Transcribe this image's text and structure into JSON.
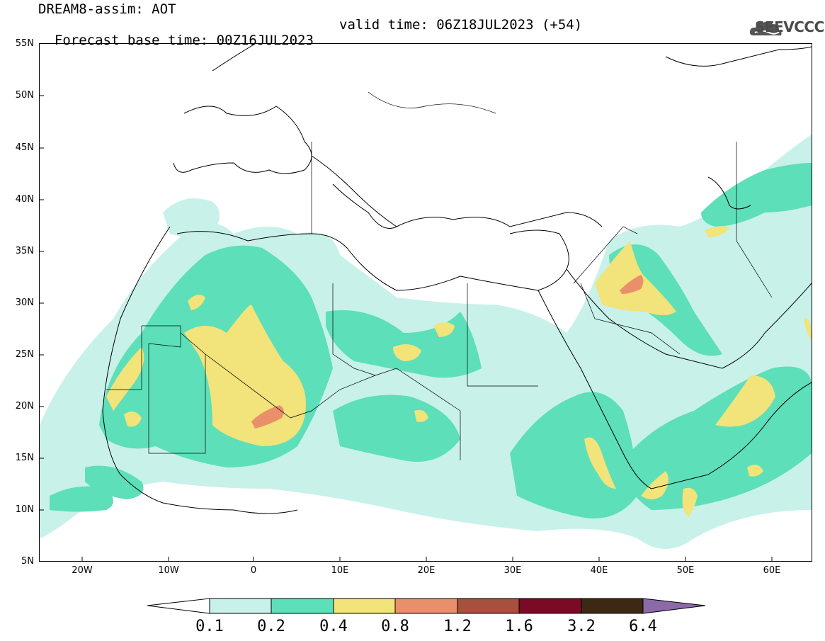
{
  "title": {
    "line1": "DREAM8-assim: AOT",
    "base_time": "Forecast base time: 00Z16JUL2023",
    "valid_time": "valid time: 06Z18JUL2023 (+54)"
  },
  "logo": {
    "text": "SEEVCCC",
    "icon": "cloud-logo-icon"
  },
  "axes": {
    "lat_labels": [
      "55N",
      "50N",
      "45N",
      "40N",
      "35N",
      "30N",
      "25N",
      "20N",
      "15N",
      "10N",
      "5N"
    ],
    "lon_labels": [
      "20W",
      "10W",
      "0",
      "10E",
      "20E",
      "30E",
      "40E",
      "50E",
      "60E"
    ],
    "lon_range": [
      -25,
      65
    ],
    "lat_range": [
      5,
      55
    ]
  },
  "colorbar": {
    "labels": [
      "0.1",
      "0.2",
      "0.4",
      "0.8",
      "1.2",
      "1.6",
      "3.2",
      "6.4"
    ],
    "colors": [
      "#c8f1ea",
      "#5ddfb9",
      "#f2e37a",
      "#e9906a",
      "#a7503e",
      "#7a0a25",
      "#3d2814",
      "#8c6aa8"
    ]
  },
  "colors": {
    "low": "#c8f1ea",
    "mid": "#5ddfb9",
    "high": "#f2e37a",
    "veryhigh": "#e9906a",
    "extreme": "#d76a5a"
  }
}
